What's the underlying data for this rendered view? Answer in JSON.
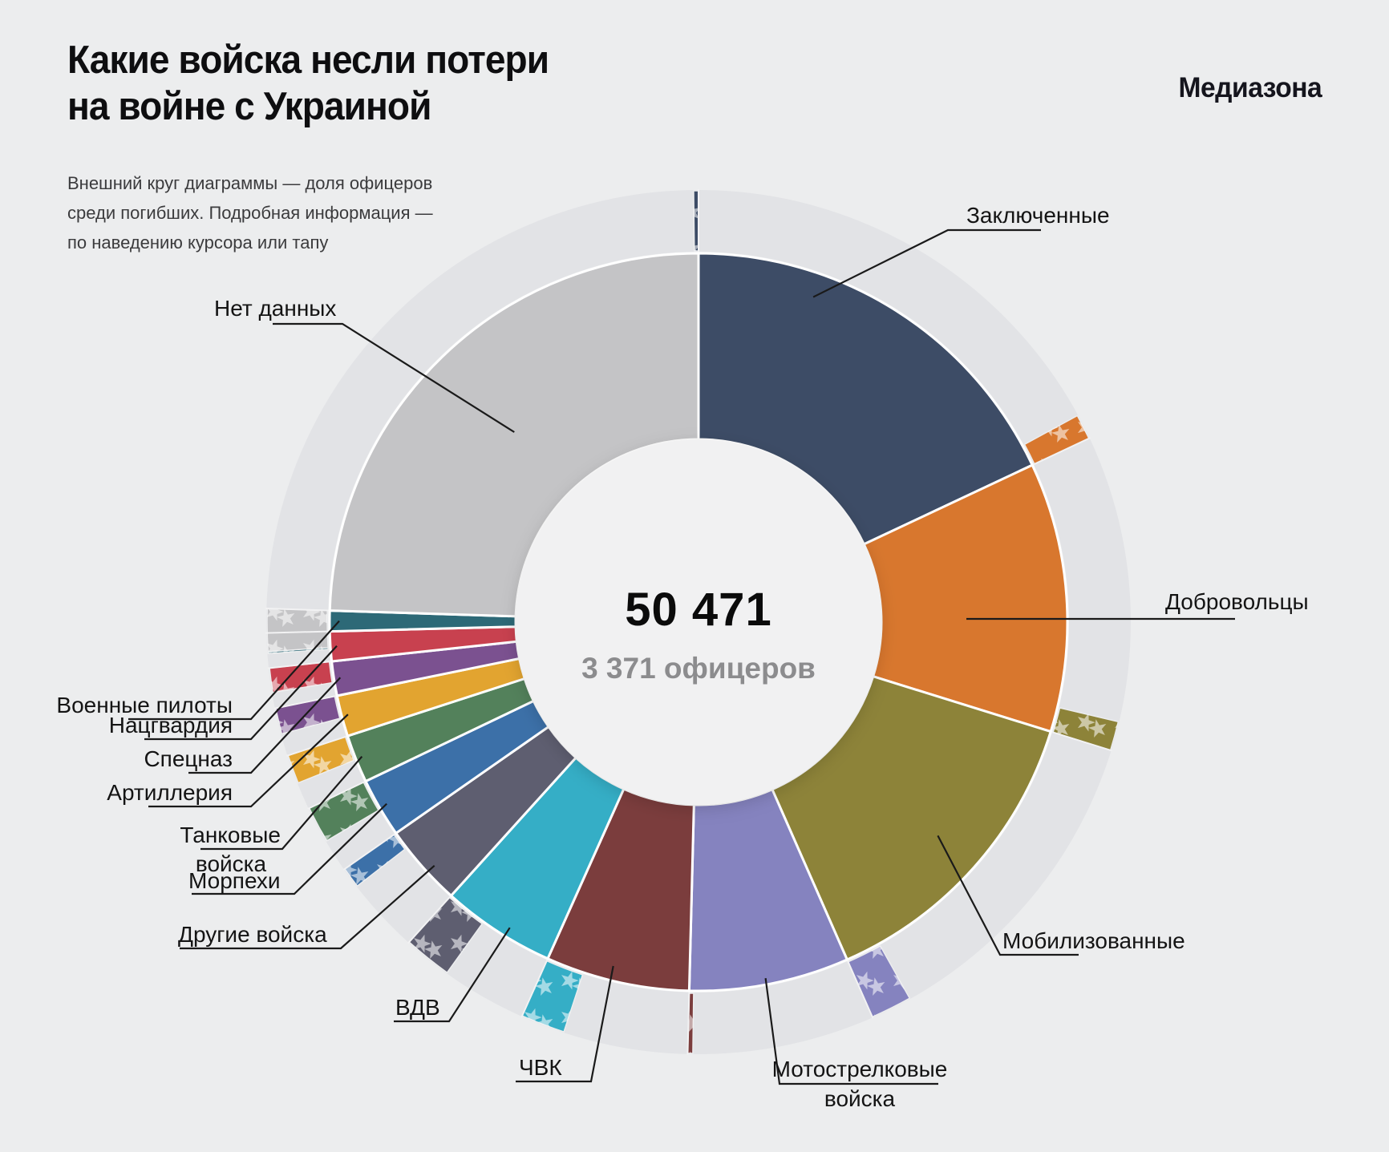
{
  "page": {
    "background": "#ecedee"
  },
  "header": {
    "title_lines": [
      "Какие войска несли потери",
      "на войне с Украиной"
    ],
    "brand": "Медиазона",
    "note_lines": [
      "Внешний круг диаграммы — доля офицеров",
      "среди погибших. Подробная информация —",
      "по наведению курсора или тапу"
    ]
  },
  "center": {
    "total": "50 471",
    "officers": "3 371 офицеров"
  },
  "chart_data": {
    "type": "pie",
    "subtype": "donut-with-officer-ring",
    "title": "Какие войска несли потери на войне с Украиной",
    "note": "Внешний круг диаграммы — доля офицеров среди погибших. Подробная информация — по наведению курсора или тапу",
    "center_total": "50 471",
    "center_officers": "3 371 офицеров",
    "legend_position": "callout-labels",
    "ring_color": "#e2e3e6",
    "slices": [
      {
        "label": "Заключенные",
        "color": "#3d4c66",
        "share_pct_est": 18.0,
        "officer_share_frac_est": 0.01
      },
      {
        "label": "Добровольцы",
        "color": "#d8772e",
        "share_pct_est": 11.8,
        "officer_share_frac_est": 0.08
      },
      {
        "label": "Мобилизованные",
        "color": "#8d8339",
        "share_pct_est": 13.6,
        "officer_share_frac_est": 0.08
      },
      {
        "label": "Мотострелковые войска",
        "color": "#8583bf",
        "share_pct_est": 7.0,
        "officer_share_frac_est": 0.22
      },
      {
        "label": "ЧВК",
        "color": "#7b3d3d",
        "share_pct_est": 6.3,
        "officer_share_frac_est": 0.03
      },
      {
        "label": "ВДВ",
        "color": "#35aec6",
        "share_pct_est": 5.0,
        "officer_share_frac_est": 0.33
      },
      {
        "label": "Другие войска",
        "color": "#5e5e70",
        "share_pct_est": 3.6,
        "officer_share_frac_est": 0.5
      },
      {
        "label": "Морпехи",
        "color": "#3c70a8",
        "share_pct_est": 2.6,
        "officer_share_frac_est": 0.3
      },
      {
        "label": "Танковые войска",
        "color": "#53815b",
        "share_pct_est": 2.1,
        "officer_share_frac_est": 0.65
      },
      {
        "label": "Артиллерия",
        "color": "#e2a430",
        "share_pct_est": 1.8,
        "officer_share_frac_est": 0.6
      },
      {
        "label": "Спецназ",
        "color": "#7b5190",
        "share_pct_est": 1.5,
        "officer_share_frac_est": 0.65
      },
      {
        "label": "Нацгвардия",
        "color": "#c8414f",
        "share_pct_est": 1.3,
        "officer_share_frac_est": 0.7
      },
      {
        "label": "Военные пилоты",
        "color": "#2d6977",
        "share_pct_est": 0.9,
        "officer_share_frac_est": 0.85
      },
      {
        "label": "Нет данных",
        "color": "#c4c4c6",
        "share_pct_est": 24.5,
        "officer_share_frac_est": 0.065
      }
    ]
  }
}
